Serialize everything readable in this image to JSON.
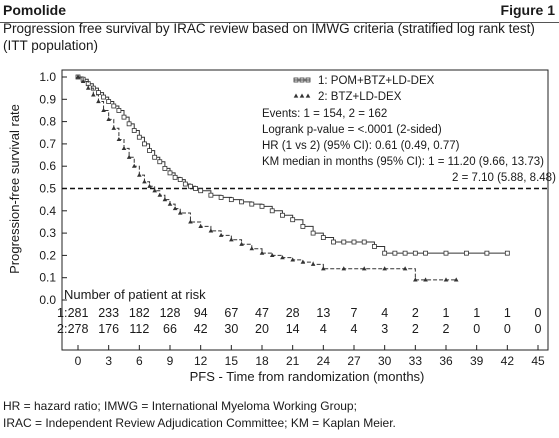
{
  "header": {
    "brand": "Pomolide",
    "figure_label": "Figure 1",
    "title": "Progression free survival by IRAC review based on IMWG criteria (stratified log rank test) (ITT population)"
  },
  "chart_data": {
    "type": "line",
    "ylabel": "Progression-free survival rate",
    "xlabel": "PFS - Time from randomization (months)",
    "xlim": [
      0,
      45
    ],
    "ylim": [
      0,
      1.0
    ],
    "x_ticks": [
      "0",
      "3",
      "6",
      "9",
      "12",
      "15",
      "18",
      "21",
      "24",
      "27",
      "30",
      "33",
      "36",
      "39",
      "42",
      "45"
    ],
    "y_ticks": [
      "0.0",
      "0.1",
      "0.2",
      "0.3",
      "0.4",
      "0.5",
      "0.6",
      "0.7",
      "0.8",
      "0.9",
      "1.0"
    ],
    "reference_line": {
      "y": 0.5,
      "style": "dashed"
    },
    "legend": {
      "placement": "top-right",
      "entries": [
        "1:  POM+BTZ+LD-DEX",
        "2:  BTZ+LD-DEX"
      ]
    },
    "annotations": [
      "Events: 1 = 154, 2 = 162",
      "Logrank p-value = <.0001 (2-sided)",
      "HR (1 vs 2) (95% CI): 0.61 (0.49, 0.77)",
      "KM median in months (95% CI): 1 = 11.20 (9.66, 13.73)",
      "2 = 7.10 (5.88, 8.48)"
    ],
    "series": [
      {
        "name": "1:  POM+BTZ+LD-DEX",
        "color": "#333333",
        "marker": "square",
        "x": [
          0,
          0.5,
          1,
          1.5,
          2,
          2.5,
          3,
          3.5,
          4,
          4.5,
          5,
          5.5,
          6,
          6.5,
          7,
          7.5,
          8,
          8.5,
          9,
          9.5,
          10,
          10.5,
          11,
          11.5,
          12,
          13,
          14,
          15,
          16,
          17,
          18,
          19,
          20,
          21,
          22,
          23,
          24,
          25,
          26,
          27,
          28,
          29,
          30,
          31,
          32,
          33,
          34,
          36,
          38,
          40,
          42
        ],
        "y": [
          1.0,
          0.99,
          0.97,
          0.95,
          0.93,
          0.91,
          0.89,
          0.87,
          0.85,
          0.82,
          0.79,
          0.76,
          0.73,
          0.7,
          0.67,
          0.64,
          0.62,
          0.59,
          0.57,
          0.55,
          0.54,
          0.52,
          0.51,
          0.5,
          0.49,
          0.47,
          0.46,
          0.45,
          0.44,
          0.43,
          0.42,
          0.4,
          0.38,
          0.36,
          0.33,
          0.3,
          0.28,
          0.26,
          0.26,
          0.26,
          0.26,
          0.24,
          0.21,
          0.21,
          0.21,
          0.21,
          0.21,
          0.21,
          0.21,
          0.21,
          0.21
        ]
      },
      {
        "name": "2:  BTZ+LD-DEX",
        "color": "#333333",
        "marker": "triangle",
        "x": [
          0,
          0.5,
          1,
          1.5,
          2,
          2.5,
          3,
          3.5,
          4,
          4.5,
          5,
          5.5,
          6,
          6.5,
          7,
          7.5,
          8,
          8.5,
          9,
          9.5,
          10,
          11,
          12,
          13,
          14,
          15,
          16,
          17,
          18,
          19,
          20,
          21,
          22,
          23,
          24,
          26,
          28,
          30,
          32,
          33,
          34,
          36,
          37
        ],
        "y": [
          1.0,
          0.98,
          0.95,
          0.92,
          0.89,
          0.85,
          0.81,
          0.77,
          0.72,
          0.68,
          0.64,
          0.6,
          0.56,
          0.53,
          0.51,
          0.49,
          0.47,
          0.45,
          0.43,
          0.41,
          0.39,
          0.35,
          0.33,
          0.31,
          0.29,
          0.27,
          0.25,
          0.23,
          0.21,
          0.2,
          0.19,
          0.18,
          0.17,
          0.16,
          0.14,
          0.14,
          0.14,
          0.14,
          0.14,
          0.09,
          0.09,
          0.09,
          0.09
        ]
      }
    ],
    "risk_table": {
      "title": "Number of patient at risk",
      "rows": [
        {
          "label": "1:",
          "values": [
            "281",
            "233",
            "182",
            "128",
            "94",
            "67",
            "47",
            "28",
            "13",
            "7",
            "4",
            "2",
            "1",
            "1",
            "1",
            "0"
          ]
        },
        {
          "label": "2:",
          "values": [
            "278",
            "176",
            "112",
            "66",
            "42",
            "30",
            "20",
            "14",
            "4",
            "4",
            "3",
            "2",
            "2",
            "0",
            "0",
            "0"
          ]
        }
      ]
    }
  },
  "footnotes": [
    "HR = hazard ratio; IMWG = International Myeloma Working Group;",
    "IRAC = Independent Review Adjudication Committee; KM = Kaplan Meier."
  ]
}
